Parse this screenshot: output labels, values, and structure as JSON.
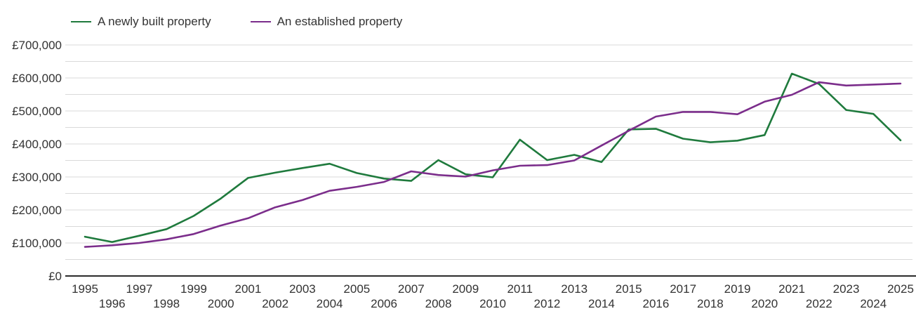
{
  "chart_data": {
    "type": "line",
    "title": "",
    "xlabel": "",
    "ylabel": "",
    "x": [
      1995,
      1996,
      1997,
      1998,
      1999,
      2000,
      2001,
      2002,
      2003,
      2004,
      2005,
      2006,
      2007,
      2008,
      2009,
      2010,
      2011,
      2012,
      2013,
      2014,
      2015,
      2016,
      2017,
      2018,
      2019,
      2020,
      2021,
      2022,
      2023,
      2024,
      2025
    ],
    "series": [
      {
        "name": "A newly built property",
        "color": "#1f7a3d",
        "values": [
          119000,
          103000,
          122000,
          142000,
          182000,
          235000,
          297000,
          313000,
          327000,
          340000,
          312000,
          295000,
          288000,
          351000,
          308000,
          299000,
          413000,
          351000,
          367000,
          345000,
          444000,
          446000,
          416000,
          405000,
          410000,
          427000,
          613000,
          582000,
          503000,
          491000,
          411000
        ]
      },
      {
        "name": "An established property",
        "color": "#7b2d8b",
        "values": [
          88000,
          93000,
          100000,
          111000,
          127000,
          153000,
          175000,
          208000,
          230000,
          258000,
          270000,
          285000,
          317000,
          306000,
          301000,
          320000,
          334000,
          336000,
          350000,
          395000,
          440000,
          483000,
          497000,
          497000,
          490000,
          528000,
          549000,
          587000,
          577000,
          580000,
          583000
        ]
      }
    ],
    "ylim": [
      0,
      700000
    ],
    "y_tick_step": 100000,
    "y_grid_step": 50000,
    "y_tick_labels": [
      "£0",
      "£100,000",
      "£200,000",
      "£300,000",
      "£400,000",
      "£500,000",
      "£600,000",
      "£700,000"
    ],
    "grid": true,
    "legend_position": "top-left",
    "style": {
      "text_color": "#333333",
      "grid_color": "#d9d9d9",
      "axis_color": "#2b2b2b",
      "background": "#ffffff"
    }
  }
}
